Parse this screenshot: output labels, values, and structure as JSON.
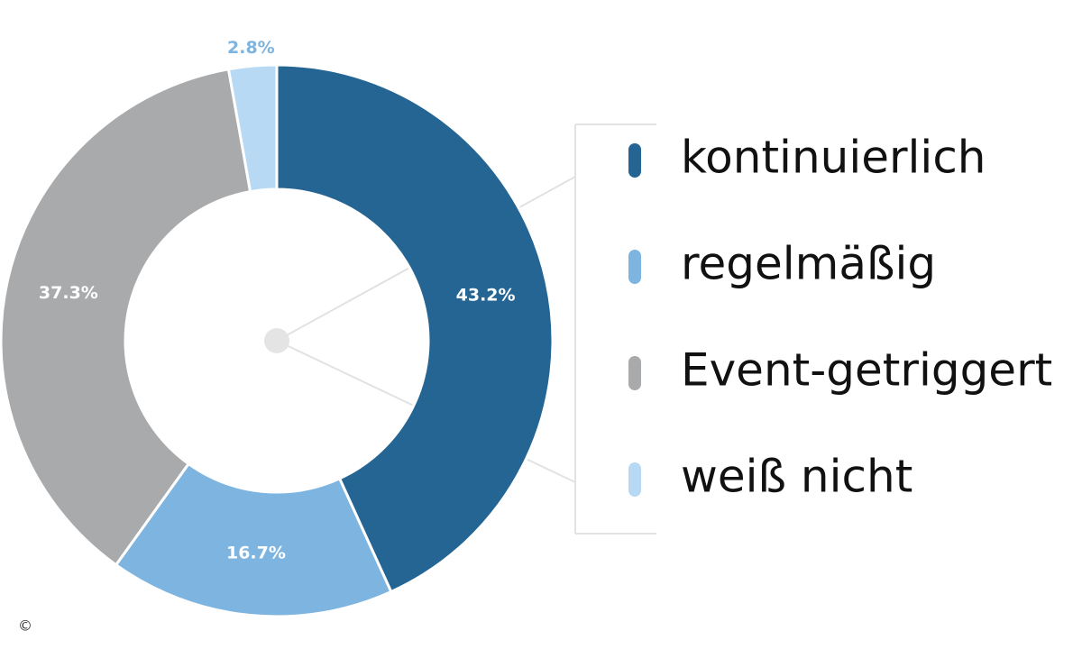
{
  "chart_data": {
    "type": "donut",
    "categories": [
      "kontinuierlich",
      "regelmäßig",
      "Event-getriggert",
      "weiß nicht"
    ],
    "values": [
      43.2,
      16.7,
      37.3,
      2.8
    ],
    "value_labels": [
      "43.2%",
      "16.7%",
      "37.3%",
      "2.8%"
    ],
    "colors": [
      "#246593",
      "#7db4e0",
      "#a9aaac",
      "#b8d9f3"
    ],
    "copyright": "©"
  }
}
